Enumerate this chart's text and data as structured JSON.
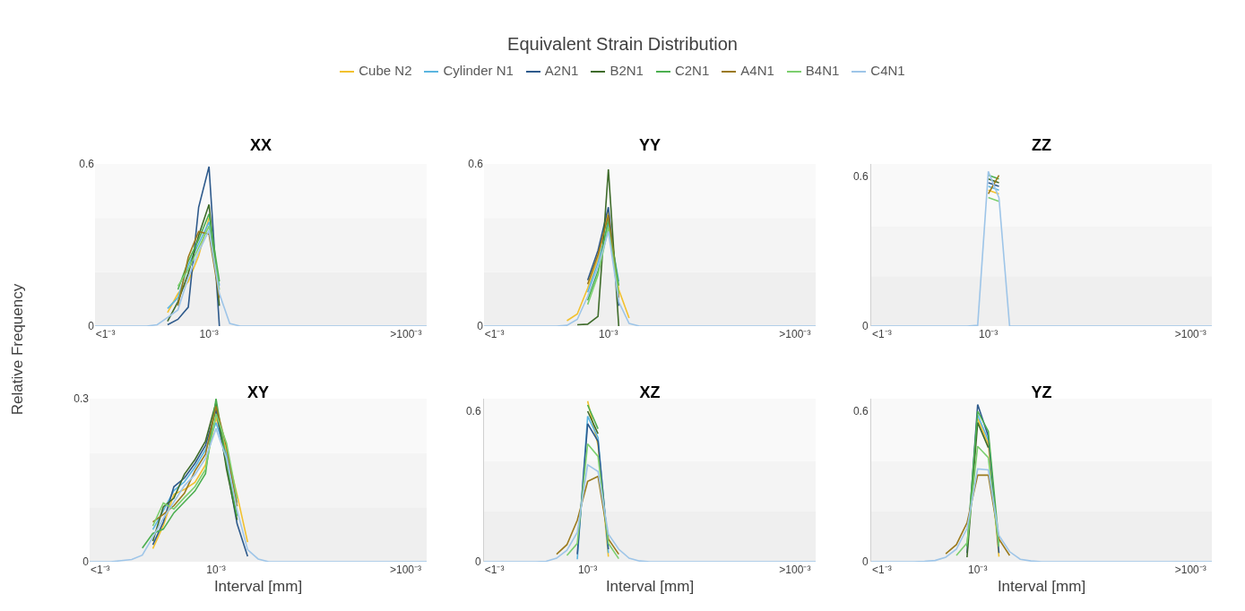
{
  "chart_data": [
    {
      "type": "line",
      "title": "XX",
      "annotations": [
        "Equivalent Strain Distribution"
      ],
      "ylabel": "Relative Frequency",
      "legend": "top",
      "ylim": [
        0,
        0.6
      ],
      "yticks": [
        0,
        0.6
      ],
      "bands": [
        {
          "axis": "y",
          "from": 0,
          "to": 0.2,
          "color": "#efefef"
        },
        {
          "axis": "y",
          "from": 0.2,
          "to": 0.4,
          "color": "#f4f4f4"
        },
        {
          "axis": "y",
          "from": 0.4,
          "to": 0.6,
          "color": "#f9f9f9"
        }
      ],
      "categories": [
        null,
        "<1⁻³",
        null,
        null,
        null,
        null,
        null,
        null,
        null,
        null,
        null,
        "10⁻³",
        null,
        null,
        null,
        null,
        null,
        null,
        null,
        null,
        null,
        null,
        null,
        null,
        null,
        null,
        null,
        null,
        null,
        null,
        ">100⁻³",
        null,
        null
      ],
      "series": [
        {
          "name": "Cube N2",
          "color": "#f2c12e",
          "values": [
            null,
            null,
            null,
            null,
            null,
            null,
            null,
            0.05,
            0.12,
            0.165,
            0.26,
            0.4,
            null,
            null,
            null,
            null,
            null,
            null,
            null,
            null,
            null,
            null,
            null,
            null,
            null,
            null,
            null,
            null,
            null,
            null,
            null,
            null,
            null
          ]
        },
        {
          "name": "Cylinder N1",
          "color": "#5bb5e0",
          "values": [
            null,
            null,
            null,
            null,
            null,
            null,
            null,
            0.065,
            0.105,
            0.225,
            0.305,
            0.385,
            0.15,
            null,
            null,
            null,
            null,
            null,
            null,
            null,
            null,
            null,
            null,
            null,
            null,
            null,
            null,
            null,
            null,
            null,
            null,
            null,
            null
          ]
        },
        {
          "name": "A2N1",
          "color": "#2e5a8c",
          "values": [
            null,
            null,
            null,
            null,
            null,
            null,
            null,
            0.005,
            0.025,
            0.07,
            0.44,
            0.59,
            0,
            null,
            null,
            null,
            null,
            null,
            null,
            null,
            null,
            null,
            null,
            null,
            null,
            null,
            null,
            null,
            null,
            null,
            null,
            null,
            null
          ]
        },
        {
          "name": "B2N1",
          "color": "#3e6b2a",
          "values": [
            null,
            null,
            null,
            null,
            null,
            null,
            null,
            0.018,
            0.09,
            0.195,
            0.335,
            0.45,
            0.075,
            null,
            null,
            null,
            null,
            null,
            null,
            null,
            null,
            null,
            null,
            null,
            null,
            null,
            null,
            null,
            null,
            null,
            null,
            null,
            null
          ]
        },
        {
          "name": "C2N1",
          "color": "#4caf50",
          "values": [
            null,
            null,
            null,
            null,
            null,
            null,
            null,
            null,
            0.135,
            0.24,
            0.32,
            0.415,
            0.165,
            null,
            null,
            null,
            null,
            null,
            null,
            null,
            null,
            null,
            null,
            null,
            null,
            null,
            null,
            null,
            null,
            null,
            null,
            null,
            null
          ]
        },
        {
          "name": "A4N1",
          "color": "#9b7a1c",
          "values": [
            null,
            null,
            null,
            null,
            null,
            null,
            null,
            null,
            0.075,
            0.255,
            0.35,
            0.34,
            0.105,
            null,
            null,
            null,
            null,
            null,
            null,
            null,
            null,
            null,
            null,
            null,
            null,
            null,
            null,
            null,
            null,
            null,
            null,
            null,
            null
          ]
        },
        {
          "name": "B4N1",
          "color": "#7ccf6e",
          "values": [
            null,
            null,
            null,
            null,
            null,
            null,
            null,
            null,
            0.148,
            0.21,
            0.29,
            0.37,
            0.135,
            null,
            null,
            null,
            null,
            null,
            null,
            null,
            null,
            null,
            null,
            null,
            null,
            null,
            null,
            null,
            null,
            null,
            null,
            null,
            null
          ]
        },
        {
          "name": "C4N1",
          "color": "#9ec5e8",
          "values": [
            0,
            0,
            0,
            0,
            0,
            0,
            0.005,
            0.032,
            0.06,
            0.18,
            0.275,
            0.355,
            0.12,
            0.01,
            0,
            0,
            0,
            0,
            0,
            0,
            0,
            0,
            0,
            0,
            0,
            0,
            0,
            0,
            0,
            0,
            0,
            0,
            0
          ]
        }
      ]
    },
    {
      "type": "line",
      "title": "YY",
      "ylim": [
        0,
        0.6
      ],
      "yticks": [
        0,
        0.6
      ],
      "bands": [
        {
          "axis": "y",
          "from": 0,
          "to": 0.2,
          "color": "#efefef"
        },
        {
          "axis": "y",
          "from": 0.2,
          "to": 0.4,
          "color": "#f4f4f4"
        },
        {
          "axis": "y",
          "from": 0.4,
          "to": 0.6,
          "color": "#f9f9f9"
        }
      ],
      "categories": [
        null,
        "<1⁻³",
        null,
        null,
        null,
        null,
        null,
        null,
        null,
        null,
        null,
        null,
        "10⁻³",
        null,
        null,
        null,
        null,
        null,
        null,
        null,
        null,
        null,
        null,
        null,
        null,
        null,
        null,
        null,
        null,
        null,
        ">100⁻³",
        null,
        null
      ],
      "series": [
        {
          "color": "#f2c12e",
          "values": [
            null,
            null,
            null,
            null,
            null,
            null,
            null,
            null,
            0.02,
            0.045,
            0.14,
            0.25,
            0.425,
            0.135,
            0.03,
            null,
            null,
            null,
            null,
            null,
            null,
            null,
            null,
            null,
            null,
            null,
            null,
            null,
            null,
            null,
            null,
            null,
            null
          ]
        },
        {
          "color": "#5bb5e0",
          "values": [
            null,
            null,
            null,
            null,
            null,
            null,
            null,
            null,
            null,
            null,
            0.125,
            0.235,
            0.38,
            0.165,
            null,
            null,
            null,
            null,
            null,
            null,
            null,
            null,
            null,
            null,
            null,
            null,
            null,
            null,
            null,
            null,
            null,
            null,
            null
          ]
        },
        {
          "color": "#2e5a8c",
          "values": [
            null,
            null,
            null,
            null,
            null,
            null,
            null,
            null,
            null,
            null,
            0.17,
            0.28,
            0.44,
            0.075,
            null,
            null,
            null,
            null,
            null,
            null,
            null,
            null,
            null,
            null,
            null,
            null,
            null,
            null,
            null,
            null,
            null,
            null,
            null
          ]
        },
        {
          "color": "#3e6b2a",
          "values": [
            null,
            null,
            null,
            null,
            null,
            null,
            null,
            null,
            null,
            0.005,
            0.007,
            0.036,
            0.58,
            0,
            null,
            null,
            null,
            null,
            null,
            null,
            null,
            null,
            null,
            null,
            null,
            null,
            null,
            null,
            null,
            null,
            null,
            null,
            null
          ]
        },
        {
          "color": "#4caf50",
          "values": [
            null,
            null,
            null,
            null,
            null,
            null,
            null,
            null,
            null,
            null,
            0.095,
            0.205,
            0.395,
            0.15,
            null,
            null,
            null,
            null,
            null,
            null,
            null,
            null,
            null,
            null,
            null,
            null,
            null,
            null,
            null,
            null,
            null,
            null,
            null
          ]
        },
        {
          "color": "#9b7a1c",
          "values": [
            null,
            null,
            null,
            null,
            null,
            null,
            null,
            null,
            null,
            null,
            0.155,
            0.265,
            0.41,
            0.105,
            null,
            null,
            null,
            null,
            null,
            null,
            null,
            null,
            null,
            null,
            null,
            null,
            null,
            null,
            null,
            null,
            null,
            null,
            null
          ]
        },
        {
          "color": "#7ccf6e",
          "values": [
            null,
            null,
            null,
            null,
            null,
            null,
            null,
            null,
            null,
            null,
            0.08,
            0.19,
            0.365,
            0.12,
            null,
            null,
            null,
            null,
            null,
            null,
            null,
            null,
            null,
            null,
            null,
            null,
            null,
            null,
            null,
            null,
            null,
            null,
            null
          ]
        },
        {
          "color": "#9ec5e8",
          "values": [
            0,
            0,
            0,
            0,
            0,
            0,
            0,
            0,
            0.003,
            0.025,
            0.11,
            0.22,
            0.35,
            0.09,
            0.01,
            0,
            0,
            0,
            0,
            0,
            0,
            0,
            0,
            0,
            0,
            0,
            0,
            0,
            0,
            0,
            0,
            0,
            0
          ]
        }
      ]
    },
    {
      "type": "line",
      "title": "ZZ",
      "ylim": [
        0,
        0.65
      ],
      "yticks": [
        0,
        0.6
      ],
      "bands": [
        {
          "axis": "y",
          "from": 0,
          "to": 0.2,
          "color": "#efefef"
        },
        {
          "axis": "y",
          "from": 0.2,
          "to": 0.4,
          "color": "#f4f4f4"
        },
        {
          "axis": "y",
          "from": 0.4,
          "to": 0.65,
          "color": "#f9f9f9"
        }
      ],
      "categories": [
        null,
        "<1⁻³",
        null,
        null,
        null,
        null,
        null,
        null,
        null,
        null,
        null,
        "10⁻³",
        null,
        null,
        null,
        null,
        null,
        null,
        null,
        null,
        null,
        null,
        null,
        null,
        null,
        null,
        null,
        null,
        null,
        null,
        ">100⁻³",
        null,
        null
      ],
      "series": [
        {
          "color": "#f2c12e",
          "values": [
            null,
            null,
            null,
            null,
            null,
            null,
            null,
            null,
            null,
            null,
            null,
            0.545,
            0.53,
            null,
            null,
            null,
            null,
            null,
            null,
            null,
            null,
            null,
            null,
            null,
            null,
            null,
            null,
            null,
            null,
            null,
            null,
            null,
            null
          ]
        },
        {
          "color": "#5bb5e0",
          "values": [
            null,
            null,
            null,
            null,
            null,
            null,
            null,
            null,
            null,
            null,
            null,
            0.56,
            0.545,
            null,
            null,
            null,
            null,
            null,
            null,
            null,
            null,
            null,
            null,
            null,
            null,
            null,
            null,
            null,
            null,
            null,
            null,
            null,
            null
          ]
        },
        {
          "color": "#2e5a8c",
          "values": [
            null,
            null,
            null,
            null,
            null,
            null,
            null,
            null,
            null,
            null,
            null,
            0.575,
            0.56,
            null,
            null,
            null,
            null,
            null,
            null,
            null,
            null,
            null,
            null,
            null,
            null,
            null,
            null,
            null,
            null,
            null,
            null,
            null,
            null
          ]
        },
        {
          "color": "#3e6b2a",
          "values": [
            null,
            null,
            null,
            null,
            null,
            null,
            null,
            null,
            null,
            null,
            null,
            0.59,
            0.575,
            null,
            null,
            null,
            null,
            null,
            null,
            null,
            null,
            null,
            null,
            null,
            null,
            null,
            null,
            null,
            null,
            null,
            null,
            null,
            null
          ]
        },
        {
          "color": "#4caf50",
          "values": [
            null,
            null,
            null,
            null,
            null,
            null,
            null,
            null,
            null,
            null,
            null,
            0.605,
            0.59,
            null,
            null,
            null,
            null,
            null,
            null,
            null,
            null,
            null,
            null,
            null,
            null,
            null,
            null,
            null,
            null,
            null,
            null,
            null,
            null
          ]
        },
        {
          "color": "#9b7a1c",
          "values": [
            null,
            null,
            null,
            null,
            null,
            null,
            null,
            null,
            null,
            null,
            null,
            0.53,
            0.605,
            null,
            null,
            null,
            null,
            null,
            null,
            null,
            null,
            null,
            null,
            null,
            null,
            null,
            null,
            null,
            null,
            null,
            null,
            null,
            null
          ]
        },
        {
          "color": "#7ccf6e",
          "values": [
            null,
            null,
            null,
            null,
            null,
            null,
            null,
            null,
            null,
            null,
            null,
            0.515,
            0.5,
            null,
            null,
            null,
            null,
            null,
            null,
            null,
            null,
            null,
            null,
            null,
            null,
            null,
            null,
            null,
            null,
            null,
            null,
            null,
            null
          ]
        },
        {
          "color": "#9ec5e8",
          "values": [
            0,
            0,
            0,
            0,
            0,
            0,
            0,
            0,
            0,
            0,
            0.003,
            0.62,
            0.515,
            0,
            0,
            0,
            0,
            0,
            0,
            0,
            0,
            0,
            0,
            0,
            0,
            0,
            0,
            0,
            0,
            0,
            0,
            0,
            0
          ]
        }
      ]
    },
    {
      "type": "line",
      "title": "XY",
      "xlabel": "Interval [mm]",
      "ylim": [
        0,
        0.3
      ],
      "yticks": [
        0,
        0.3
      ],
      "bands": [
        {
          "axis": "y",
          "from": 0,
          "to": 0.1,
          "color": "#efefef"
        },
        {
          "axis": "y",
          "from": 0.1,
          "to": 0.2,
          "color": "#f4f4f4"
        },
        {
          "axis": "y",
          "from": 0.2,
          "to": 0.3,
          "color": "#f9f9f9"
        }
      ],
      "categories": [
        null,
        "<1⁻³",
        null,
        null,
        null,
        null,
        null,
        null,
        null,
        null,
        null,
        null,
        "10⁻³",
        null,
        null,
        null,
        null,
        null,
        null,
        null,
        null,
        null,
        null,
        null,
        null,
        null,
        null,
        null,
        null,
        null,
        ">100⁻³",
        null,
        null
      ],
      "series": [
        {
          "color": "#f2c12e",
          "values": [
            null,
            null,
            null,
            null,
            null,
            null,
            0.024,
            0.067,
            0.124,
            0.133,
            0.146,
            0.178,
            0.265,
            0.204,
            0.123,
            0.036,
            null,
            null,
            null,
            null,
            null,
            null,
            null,
            null,
            null,
            null,
            null,
            null,
            null,
            null,
            null,
            null,
            null
          ]
        },
        {
          "color": "#5bb5e0",
          "values": [
            null,
            null,
            null,
            null,
            null,
            null,
            0.059,
            0.094,
            0.131,
            0.147,
            0.174,
            0.206,
            0.256,
            0.197,
            0.109,
            null,
            null,
            null,
            null,
            null,
            null,
            null,
            null,
            null,
            null,
            null,
            null,
            null,
            null,
            null,
            null,
            null,
            null
          ]
        },
        {
          "color": "#2e5a8c",
          "values": [
            null,
            null,
            null,
            null,
            null,
            null,
            0.031,
            0.073,
            0.138,
            0.154,
            0.181,
            0.214,
            0.279,
            0.177,
            0.07,
            0.01,
            null,
            null,
            null,
            null,
            null,
            null,
            null,
            null,
            null,
            null,
            null,
            null,
            null,
            null,
            null,
            null,
            null
          ]
        },
        {
          "color": "#3e6b2a",
          "values": [
            null,
            null,
            null,
            null,
            null,
            null,
            0.038,
            0.101,
            0.117,
            0.161,
            0.188,
            0.222,
            0.293,
            0.17,
            0.077,
            null,
            null,
            null,
            null,
            null,
            null,
            null,
            null,
            null,
            null,
            null,
            null,
            null,
            null,
            null,
            null,
            null,
            null
          ]
        },
        {
          "color": "#4caf50",
          "values": [
            null,
            null,
            null,
            null,
            null,
            0.025,
            0.052,
            0.06,
            0.09,
            0.11,
            0.13,
            0.162,
            0.3,
            0.183,
            0.084,
            null,
            null,
            null,
            null,
            null,
            null,
            null,
            null,
            null,
            null,
            null,
            null,
            null,
            null,
            null,
            null,
            null,
            null
          ]
        },
        {
          "color": "#9b7a1c",
          "values": [
            null,
            null,
            null,
            null,
            null,
            null,
            0.073,
            0.087,
            0.103,
            0.126,
            0.167,
            0.198,
            0.286,
            0.211,
            0.102,
            null,
            null,
            null,
            null,
            null,
            null,
            null,
            null,
            null,
            null,
            null,
            null,
            null,
            null,
            null,
            null,
            null,
            null
          ]
        },
        {
          "color": "#7ccf6e",
          "values": [
            null,
            null,
            null,
            null,
            null,
            null,
            0.066,
            0.108,
            0.097,
            0.118,
            0.138,
            0.17,
            0.272,
            0.218,
            0.116,
            null,
            null,
            null,
            null,
            null,
            null,
            null,
            null,
            null,
            null,
            null,
            null,
            null,
            null,
            null,
            null,
            null,
            null
          ]
        },
        {
          "color": "#9ec5e8",
          "values": [
            0,
            0,
            0,
            0.002,
            0.004,
            0.012,
            0.045,
            0.08,
            0.11,
            0.14,
            0.16,
            0.19,
            0.245,
            0.19,
            0.095,
            0.022,
            0.005,
            0,
            0,
            0,
            0,
            0,
            0,
            0,
            0,
            0,
            0,
            0,
            0,
            0,
            0,
            0,
            0
          ]
        }
      ]
    },
    {
      "type": "line",
      "title": "XZ",
      "xlabel": "Interval [mm]",
      "ylim": [
        0,
        0.65
      ],
      "yticks": [
        0,
        0.6
      ],
      "bands": [
        {
          "axis": "y",
          "from": 0,
          "to": 0.2,
          "color": "#efefef"
        },
        {
          "axis": "y",
          "from": 0.2,
          "to": 0.4,
          "color": "#f4f4f4"
        },
        {
          "axis": "y",
          "from": 0.4,
          "to": 0.65,
          "color": "#f9f9f9"
        }
      ],
      "categories": [
        null,
        "<1⁻³",
        null,
        null,
        null,
        null,
        null,
        null,
        null,
        null,
        "10⁻³",
        null,
        null,
        null,
        null,
        null,
        null,
        null,
        null,
        null,
        null,
        null,
        null,
        null,
        null,
        null,
        null,
        null,
        null,
        null,
        ">100⁻³",
        null,
        null
      ],
      "series": [
        {
          "color": "#f2c12e",
          "values": [
            null,
            null,
            null,
            null,
            null,
            null,
            null,
            null,
            null,
            null,
            0.64,
            0.465,
            0.02,
            null,
            null,
            null,
            null,
            null,
            null,
            null,
            null,
            null,
            null,
            null,
            null,
            null,
            null,
            null,
            null,
            null,
            null,
            null,
            null
          ]
        },
        {
          "color": "#5bb5e0",
          "values": [
            null,
            null,
            null,
            null,
            null,
            null,
            null,
            null,
            null,
            0.01,
            0.58,
            0.495,
            0.035,
            null,
            null,
            null,
            null,
            null,
            null,
            null,
            null,
            null,
            null,
            null,
            null,
            null,
            null,
            null,
            null,
            null,
            null,
            null,
            null
          ]
        },
        {
          "color": "#2e5a8c",
          "values": [
            null,
            null,
            null,
            null,
            null,
            null,
            null,
            null,
            null,
            0.03,
            0.55,
            0.48,
            0.05,
            null,
            null,
            null,
            null,
            null,
            null,
            null,
            null,
            null,
            null,
            null,
            null,
            null,
            null,
            null,
            null,
            null,
            null,
            null,
            null
          ]
        },
        {
          "color": "#3e6b2a",
          "values": [
            null,
            null,
            null,
            null,
            null,
            null,
            null,
            null,
            null,
            null,
            0.6,
            0.51,
            null,
            null,
            null,
            null,
            null,
            null,
            null,
            null,
            null,
            null,
            null,
            null,
            null,
            null,
            null,
            null,
            null,
            null,
            null,
            null,
            null
          ]
        },
        {
          "color": "#4caf50",
          "values": [
            null,
            null,
            null,
            null,
            null,
            null,
            null,
            null,
            null,
            null,
            0.625,
            0.53,
            null,
            null,
            null,
            null,
            null,
            null,
            null,
            null,
            null,
            null,
            null,
            null,
            null,
            null,
            null,
            null,
            null,
            null,
            null,
            null,
            null
          ]
        },
        {
          "color": "#9b7a1c",
          "values": [
            null,
            null,
            null,
            null,
            null,
            null,
            null,
            0.03,
            0.068,
            0.165,
            0.32,
            0.34,
            0.09,
            0.03,
            null,
            null,
            null,
            null,
            null,
            null,
            null,
            null,
            null,
            null,
            null,
            null,
            null,
            null,
            null,
            null,
            null,
            null,
            null
          ]
        },
        {
          "color": "#7ccf6e",
          "values": [
            null,
            null,
            null,
            null,
            null,
            null,
            null,
            null,
            0.025,
            0.073,
            0.47,
            0.42,
            0.073,
            0.012,
            null,
            null,
            null,
            null,
            null,
            null,
            null,
            null,
            null,
            null,
            null,
            null,
            null,
            null,
            null,
            null,
            null,
            null,
            null
          ]
        },
        {
          "color": "#9ec5e8",
          "values": [
            0,
            0,
            0,
            0,
            0,
            0,
            0.002,
            0.014,
            0.046,
            0.117,
            0.386,
            0.36,
            0.11,
            0.05,
            0.014,
            0.003,
            0,
            0,
            0,
            0,
            0,
            0,
            0,
            0,
            0,
            0,
            0,
            0,
            0,
            0,
            0,
            0,
            0
          ]
        }
      ]
    },
    {
      "type": "line",
      "title": "YZ",
      "xlabel": "Interval [mm]",
      "ylim": [
        0,
        0.65
      ],
      "yticks": [
        0,
        0.6
      ],
      "bands": [
        {
          "axis": "y",
          "from": 0,
          "to": 0.2,
          "color": "#efefef"
        },
        {
          "axis": "y",
          "from": 0.2,
          "to": 0.4,
          "color": "#f4f4f4"
        },
        {
          "axis": "y",
          "from": 0.4,
          "to": 0.65,
          "color": "#f9f9f9"
        }
      ],
      "categories": [
        null,
        "<1⁻³",
        null,
        null,
        null,
        null,
        null,
        null,
        null,
        null,
        "10⁻³",
        null,
        null,
        null,
        null,
        null,
        null,
        null,
        null,
        null,
        null,
        null,
        null,
        null,
        null,
        null,
        null,
        null,
        null,
        null,
        ">100⁻³",
        null,
        null
      ],
      "series": [
        {
          "color": "#f2c12e",
          "values": [
            null,
            null,
            null,
            null,
            null,
            null,
            null,
            null,
            null,
            null,
            0.57,
            0.47,
            0.02,
            null,
            null,
            null,
            null,
            null,
            null,
            null,
            null,
            null,
            null,
            null,
            null,
            null,
            null,
            null,
            null,
            null,
            null,
            null,
            null
          ]
        },
        {
          "color": "#5bb5e0",
          "values": [
            null,
            null,
            null,
            null,
            null,
            null,
            null,
            null,
            null,
            null,
            0.585,
            0.485,
            null,
            null,
            null,
            null,
            null,
            null,
            null,
            null,
            null,
            null,
            null,
            null,
            null,
            null,
            null,
            null,
            null,
            null,
            null,
            null,
            null
          ]
        },
        {
          "color": "#2e5a8c",
          "values": [
            null,
            null,
            null,
            null,
            null,
            null,
            null,
            null,
            null,
            0.035,
            0.627,
            0.5,
            0.035,
            null,
            null,
            null,
            null,
            null,
            null,
            null,
            null,
            null,
            null,
            null,
            null,
            null,
            null,
            null,
            null,
            null,
            null,
            null,
            null
          ]
        },
        {
          "color": "#3e6b2a",
          "values": [
            null,
            null,
            null,
            null,
            null,
            null,
            null,
            null,
            null,
            0.018,
            0.555,
            0.455,
            null,
            null,
            null,
            null,
            null,
            null,
            null,
            null,
            null,
            null,
            null,
            null,
            null,
            null,
            null,
            null,
            null,
            null,
            null,
            null,
            null
          ]
        },
        {
          "color": "#4caf50",
          "values": [
            null,
            null,
            null,
            null,
            null,
            null,
            null,
            null,
            null,
            0.06,
            0.6,
            0.52,
            0.075,
            null,
            null,
            null,
            null,
            null,
            null,
            null,
            null,
            null,
            null,
            null,
            null,
            null,
            null,
            null,
            null,
            null,
            null,
            null,
            null
          ]
        },
        {
          "color": "#9b7a1c",
          "values": [
            null,
            null,
            null,
            null,
            null,
            null,
            null,
            0.032,
            0.068,
            0.155,
            0.345,
            0.345,
            0.09,
            0.025,
            null,
            null,
            null,
            null,
            null,
            null,
            null,
            null,
            null,
            null,
            null,
            null,
            null,
            null,
            null,
            null,
            null,
            null,
            null
          ]
        },
        {
          "color": "#7ccf6e",
          "values": [
            null,
            null,
            null,
            null,
            null,
            null,
            null,
            null,
            0.025,
            0.075,
            0.46,
            0.415,
            0.06,
            null,
            null,
            null,
            null,
            null,
            null,
            null,
            null,
            null,
            null,
            null,
            null,
            null,
            null,
            null,
            null,
            null,
            null,
            null,
            null
          ]
        },
        {
          "color": "#9ec5e8",
          "values": [
            0,
            0,
            0,
            0,
            0,
            0.002,
            0.005,
            0.018,
            0.05,
            0.133,
            0.37,
            0.366,
            0.105,
            0.04,
            0.01,
            0.003,
            0,
            0,
            0,
            0,
            0,
            0,
            0,
            0,
            0,
            0,
            0,
            0,
            0,
            0,
            0,
            0,
            0
          ]
        }
      ]
    }
  ]
}
